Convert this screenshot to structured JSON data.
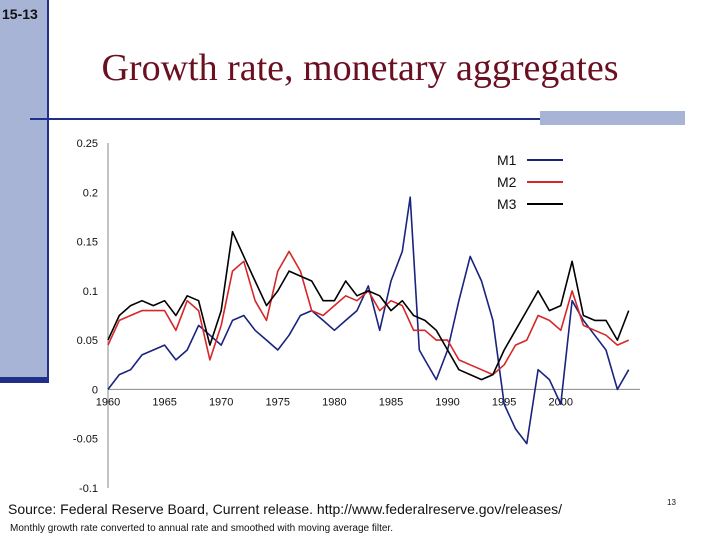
{
  "slide": {
    "id": "15-13",
    "title": "Growth rate, monetary aggregates",
    "source": "Source: Federal Reserve Board, Current release. http://www.federalreserve.gov/releases/",
    "note": "Monthly growth rate converted to annual rate and smoothed with moving average filter.",
    "page_number": "13",
    "colors": {
      "title": "#6b1022",
      "accent": "#1f2f8a",
      "accent_light": "#a8b4d6"
    }
  },
  "chart_data": {
    "type": "line",
    "title": "",
    "xlabel": "",
    "ylabel": "",
    "xlim": [
      1960,
      2007
    ],
    "ylim": [
      -0.1,
      0.25
    ],
    "xticks": [
      "1960",
      "1965",
      "1970",
      "1975",
      "1980",
      "1985",
      "1990",
      "1995",
      "2000"
    ],
    "yticks": [
      "0.25",
      "0.2",
      "0.15",
      "0.1",
      "0.05",
      "0",
      "-0.05",
      "-0.1"
    ],
    "legend_position": "top-right",
    "series": [
      {
        "name": "M1",
        "color": "#1a237e",
        "x": [
          1960,
          1961,
          1962,
          1963,
          1964,
          1965,
          1966,
          1967,
          1968,
          1969,
          1970,
          1971,
          1972,
          1973,
          1974,
          1975,
          1976,
          1977,
          1978,
          1979,
          1980,
          1981,
          1982,
          1983,
          1984,
          1985,
          1986,
          1986.7,
          1987.5,
          1988,
          1989,
          1990,
          1991,
          1992,
          1993,
          1994,
          1995,
          1996,
          1997,
          1998,
          1999,
          2000,
          2001,
          2002,
          2003,
          2004,
          2005,
          2006
        ],
        "y": [
          0.0,
          0.015,
          0.02,
          0.035,
          0.04,
          0.045,
          0.03,
          0.04,
          0.065,
          0.055,
          0.045,
          0.07,
          0.075,
          0.06,
          0.05,
          0.04,
          0.055,
          0.075,
          0.08,
          0.07,
          0.06,
          0.07,
          0.08,
          0.105,
          0.06,
          0.11,
          0.14,
          0.195,
          0.04,
          0.03,
          0.01,
          0.04,
          0.09,
          0.135,
          0.11,
          0.07,
          -0.015,
          -0.04,
          -0.055,
          0.02,
          0.01,
          -0.015,
          0.09,
          0.07,
          0.055,
          0.04,
          0.0,
          0.02
        ]
      },
      {
        "name": "M2",
        "color": "#d62728",
        "x": [
          1960,
          1961,
          1962,
          1963,
          1964,
          1965,
          1966,
          1967,
          1968,
          1969,
          1970,
          1971,
          1972,
          1973,
          1974,
          1975,
          1976,
          1977,
          1978,
          1979,
          1980,
          1981,
          1982,
          1983,
          1984,
          1985,
          1986,
          1987,
          1988,
          1989,
          1990,
          1991,
          1992,
          1993,
          1994,
          1995,
          1996,
          1997,
          1998,
          1999,
          2000,
          2001,
          2002,
          2003,
          2004,
          2005,
          2006
        ],
        "y": [
          0.045,
          0.07,
          0.075,
          0.08,
          0.08,
          0.08,
          0.06,
          0.09,
          0.08,
          0.03,
          0.065,
          0.12,
          0.13,
          0.09,
          0.07,
          0.12,
          0.14,
          0.12,
          0.08,
          0.075,
          0.085,
          0.095,
          0.09,
          0.1,
          0.08,
          0.09,
          0.085,
          0.06,
          0.06,
          0.05,
          0.05,
          0.03,
          0.025,
          0.02,
          0.015,
          0.025,
          0.045,
          0.05,
          0.075,
          0.07,
          0.06,
          0.1,
          0.065,
          0.06,
          0.055,
          0.045,
          0.05
        ]
      },
      {
        "name": "M3",
        "color": "#000000",
        "x": [
          1960,
          1961,
          1962,
          1963,
          1964,
          1965,
          1966,
          1967,
          1968,
          1969,
          1970,
          1971,
          1972,
          1973,
          1974,
          1975,
          1976,
          1977,
          1978,
          1979,
          1980,
          1981,
          1982,
          1983,
          1984,
          1985,
          1986,
          1987,
          1988,
          1989,
          1990,
          1991,
          1992,
          1993,
          1994,
          1995,
          1996,
          1997,
          1998,
          1999,
          2000,
          2001,
          2002,
          2003,
          2004,
          2005,
          2006
        ],
        "y": [
          0.05,
          0.075,
          0.085,
          0.09,
          0.085,
          0.09,
          0.075,
          0.095,
          0.09,
          0.045,
          0.08,
          0.16,
          0.135,
          0.11,
          0.085,
          0.1,
          0.12,
          0.115,
          0.11,
          0.09,
          0.09,
          0.11,
          0.095,
          0.1,
          0.095,
          0.08,
          0.09,
          0.075,
          0.07,
          0.06,
          0.04,
          0.02,
          0.015,
          0.01,
          0.015,
          0.04,
          0.06,
          0.08,
          0.1,
          0.08,
          0.085,
          0.13,
          0.075,
          0.07,
          0.07,
          0.05,
          0.08
        ]
      }
    ]
  }
}
